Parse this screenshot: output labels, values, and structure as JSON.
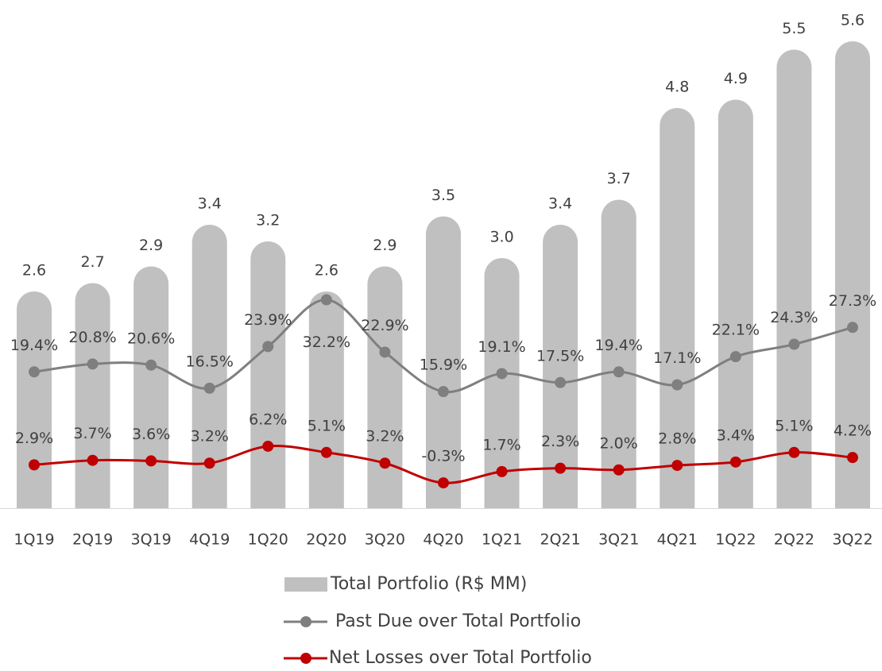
{
  "chart_data": {
    "type": "bar-line",
    "categories": [
      "1Q19",
      "2Q19",
      "3Q19",
      "4Q19",
      "1Q20",
      "2Q20",
      "3Q20",
      "4Q20",
      "1Q21",
      "2Q21",
      "3Q21",
      "4Q21",
      "1Q22",
      "2Q22",
      "3Q22"
    ],
    "ylim": [
      0,
      6
    ],
    "y2lim": [
      -4.8,
      84
    ],
    "series": [
      {
        "name": "Total Portfolio (R$ MM)",
        "type": "bar",
        "color": "#c0c0c0",
        "values": [
          2.6,
          2.7,
          2.9,
          3.4,
          3.2,
          2.6,
          2.9,
          3.5,
          3.0,
          3.4,
          3.7,
          4.8,
          4.9,
          5.5,
          5.6
        ],
        "value_labels": [
          "2.6",
          "2.7",
          "2.9",
          "3.4",
          "3.2",
          "2.6",
          "2.9",
          "3.5",
          "3.0",
          "3.4",
          "3.7",
          "4.8",
          "4.9",
          "5.5",
          "5.6"
        ]
      },
      {
        "name": "Past Due over Total Portfolio",
        "type": "line",
        "axis": "y2",
        "color": "#7f7f7f",
        "values": [
          19.4,
          20.8,
          20.6,
          16.5,
          23.9,
          32.2,
          22.9,
          15.9,
          19.1,
          17.5,
          19.4,
          17.1,
          22.1,
          24.3,
          27.3
        ],
        "value_labels": [
          "19.4%",
          "20.8%",
          "20.6%",
          "16.5%",
          "23.9%",
          "32.2%",
          "22.9%",
          "15.9%",
          "19.1%",
          "17.5%",
          "19.4%",
          "17.1%",
          "22.1%",
          "24.3%",
          "27.3%"
        ]
      },
      {
        "name": "Net Losses over Total Portfolio",
        "type": "line",
        "axis": "y2",
        "color": "#c00000",
        "values": [
          2.9,
          3.7,
          3.6,
          3.2,
          6.2,
          5.1,
          3.2,
          -0.3,
          1.7,
          2.3,
          2.0,
          2.8,
          3.4,
          5.1,
          4.2
        ],
        "value_labels": [
          "2.9%",
          "3.7%",
          "3.6%",
          "3.2%",
          "6.2%",
          "5.1%",
          "3.2%",
          "-0.3%",
          "1.7%",
          "2.3%",
          "2.0%",
          "2.8%",
          "3.4%",
          "5.1%",
          "4.2%"
        ]
      }
    ],
    "legend": "bottom"
  }
}
